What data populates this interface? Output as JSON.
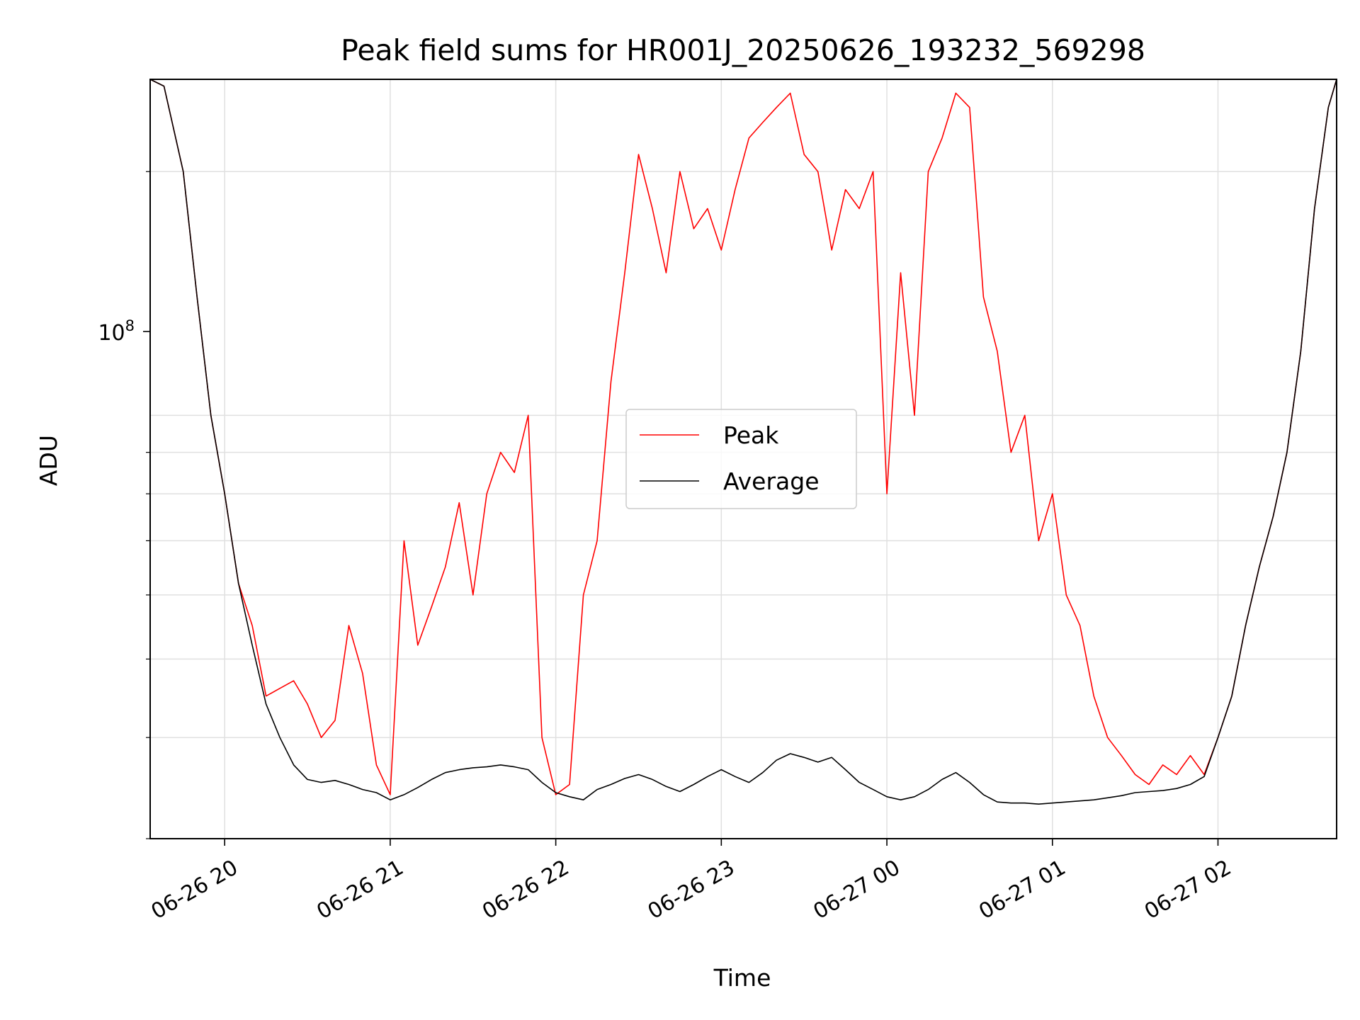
{
  "chart_data": {
    "type": "line",
    "title": "Peak field sums for HR001J_20250626_193232_569298",
    "xlabel": "Time",
    "ylabel": "ADU",
    "y_scale": "log",
    "ylim": [
      30000000,
      260000000
    ],
    "xlim": [
      "06-26 19:33",
      "06-27 02:43"
    ],
    "grid": true,
    "legend_location": "center",
    "x_ticks": [
      "06-26 20",
      "06-26 21",
      "06-26 22",
      "06-26 23",
      "06-27 00",
      "06-27 01",
      "06-27 02"
    ],
    "y_tick_label": {
      "base": "10",
      "exponent": "8"
    },
    "series": [
      {
        "name": "Peak",
        "color": "#ff0000",
        "x": [
          "06-26 19:33",
          "06-26 19:38",
          "06-26 19:45",
          "06-26 19:50",
          "06-26 19:55",
          "06-26 20:00",
          "06-26 20:05",
          "06-26 20:10",
          "06-26 20:15",
          "06-26 20:20",
          "06-26 20:25",
          "06-26 20:30",
          "06-26 20:35",
          "06-26 20:40",
          "06-26 20:45",
          "06-26 20:50",
          "06-26 20:55",
          "06-26 21:00",
          "06-26 21:05",
          "06-26 21:10",
          "06-26 21:15",
          "06-26 21:20",
          "06-26 21:25",
          "06-26 21:30",
          "06-26 21:35",
          "06-26 21:40",
          "06-26 21:45",
          "06-26 21:50",
          "06-26 21:55",
          "06-26 22:00",
          "06-26 22:05",
          "06-26 22:10",
          "06-26 22:15",
          "06-26 22:20",
          "06-26 22:25",
          "06-26 22:30",
          "06-26 22:35",
          "06-26 22:40",
          "06-26 22:45",
          "06-26 22:50",
          "06-26 22:55",
          "06-26 23:00",
          "06-26 23:05",
          "06-26 23:10",
          "06-26 23:15",
          "06-26 23:20",
          "06-26 23:25",
          "06-26 23:30",
          "06-26 23:35",
          "06-26 23:40",
          "06-26 23:45",
          "06-26 23:50",
          "06-26 23:55",
          "06-27 00:00",
          "06-27 00:05",
          "06-27 00:10",
          "06-27 00:15",
          "06-27 00:20",
          "06-27 00:25",
          "06-27 00:30",
          "06-27 00:35",
          "06-27 00:40",
          "06-27 00:45",
          "06-27 00:50",
          "06-27 00:55",
          "06-27 01:00",
          "06-27 01:05",
          "06-27 01:10",
          "06-27 01:15",
          "06-27 01:20",
          "06-27 01:25",
          "06-27 01:30",
          "06-27 01:35",
          "06-27 01:40",
          "06-27 01:45",
          "06-27 01:50",
          "06-27 01:55",
          "06-27 02:00",
          "06-27 02:05",
          "06-27 02:10",
          "06-27 02:15",
          "06-27 02:20",
          "06-27 02:25",
          "06-27 02:30",
          "06-27 02:35",
          "06-27 02:40",
          "06-27 02:43"
        ],
        "values": [
          260000000,
          255000000,
          200000000,
          140000000,
          100000000,
          80000000,
          62000000,
          55000000,
          45000000,
          46000000,
          47000000,
          44000000,
          40000000,
          42000000,
          55000000,
          48000000,
          37000000,
          34000000,
          70000000,
          52000000,
          58000000,
          65000000,
          78000000,
          60000000,
          80000000,
          90000000,
          85000000,
          100000000,
          40000000,
          34000000,
          35000000,
          60000000,
          70000000,
          110000000,
          150000000,
          210000000,
          180000000,
          150000000,
          200000000,
          170000000,
          180000000,
          160000000,
          190000000,
          220000000,
          230000000,
          240000000,
          250000000,
          210000000,
          200000000,
          160000000,
          190000000,
          180000000,
          200000000,
          80000000,
          150000000,
          100000000,
          200000000,
          220000000,
          250000000,
          240000000,
          140000000,
          120000000,
          90000000,
          100000000,
          70000000,
          80000000,
          60000000,
          55000000,
          45000000,
          40000000,
          38000000,
          36000000,
          35000000,
          37000000,
          36000000,
          38000000,
          36000000,
          40000000,
          45000000,
          55000000,
          65000000,
          75000000,
          90000000,
          120000000,
          180000000,
          240000000,
          260000000
        ]
      },
      {
        "name": "Average",
        "color": "#000000",
        "x": [
          "06-26 19:33",
          "06-26 19:38",
          "06-26 19:45",
          "06-26 19:50",
          "06-26 19:55",
          "06-26 20:00",
          "06-26 20:05",
          "06-26 20:10",
          "06-26 20:15",
          "06-26 20:20",
          "06-26 20:25",
          "06-26 20:30",
          "06-26 20:35",
          "06-26 20:40",
          "06-26 20:45",
          "06-26 20:50",
          "06-26 20:55",
          "06-26 21:00",
          "06-26 21:05",
          "06-26 21:10",
          "06-26 21:15",
          "06-26 21:20",
          "06-26 21:25",
          "06-26 21:30",
          "06-26 21:35",
          "06-26 21:40",
          "06-26 21:45",
          "06-26 21:50",
          "06-26 21:55",
          "06-26 22:00",
          "06-26 22:05",
          "06-26 22:10",
          "06-26 22:15",
          "06-26 22:20",
          "06-26 22:25",
          "06-26 22:30",
          "06-26 22:35",
          "06-26 22:40",
          "06-26 22:45",
          "06-26 22:50",
          "06-26 22:55",
          "06-26 23:00",
          "06-26 23:05",
          "06-26 23:10",
          "06-26 23:15",
          "06-26 23:20",
          "06-26 23:25",
          "06-26 23:30",
          "06-26 23:35",
          "06-26 23:40",
          "06-26 23:45",
          "06-26 23:50",
          "06-26 23:55",
          "06-27 00:00",
          "06-27 00:05",
          "06-27 00:10",
          "06-27 00:15",
          "06-27 00:20",
          "06-27 00:25",
          "06-27 00:30",
          "06-27 00:35",
          "06-27 00:40",
          "06-27 00:45",
          "06-27 00:50",
          "06-27 00:55",
          "06-27 01:00",
          "06-27 01:05",
          "06-27 01:10",
          "06-27 01:15",
          "06-27 01:20",
          "06-27 01:25",
          "06-27 01:30",
          "06-27 01:35",
          "06-27 01:40",
          "06-27 01:45",
          "06-27 01:50",
          "06-27 01:55",
          "06-27 02:00",
          "06-27 02:05",
          "06-27 02:10",
          "06-27 02:15",
          "06-27 02:20",
          "06-27 02:25",
          "06-27 02:30",
          "06-27 02:35",
          "06-27 02:40",
          "06-27 02:43"
        ],
        "values": [
          260000000,
          255000000,
          200000000,
          140000000,
          100000000,
          80000000,
          62000000,
          52000000,
          44000000,
          40000000,
          37000000,
          35500000,
          35200000,
          35400000,
          35000000,
          34500000,
          34200000,
          33500000,
          34000000,
          34700000,
          35500000,
          36200000,
          36500000,
          36700000,
          36800000,
          37000000,
          36800000,
          36500000,
          35200000,
          34200000,
          33800000,
          33500000,
          34500000,
          35000000,
          35600000,
          36000000,
          35500000,
          34800000,
          34300000,
          35000000,
          35800000,
          36500000,
          35800000,
          35200000,
          36200000,
          37500000,
          38200000,
          37800000,
          37300000,
          37800000,
          36500000,
          35200000,
          34500000,
          33800000,
          33500000,
          33800000,
          34500000,
          35500000,
          36200000,
          35200000,
          34000000,
          33300000,
          33200000,
          33200000,
          33100000,
          33200000,
          33300000,
          33400000,
          33500000,
          33700000,
          33900000,
          34200000,
          34300000,
          34400000,
          34600000,
          35000000,
          35800000,
          40000000,
          45000000,
          55000000,
          65000000,
          75000000,
          90000000,
          120000000,
          180000000,
          240000000,
          260000000
        ]
      }
    ]
  }
}
